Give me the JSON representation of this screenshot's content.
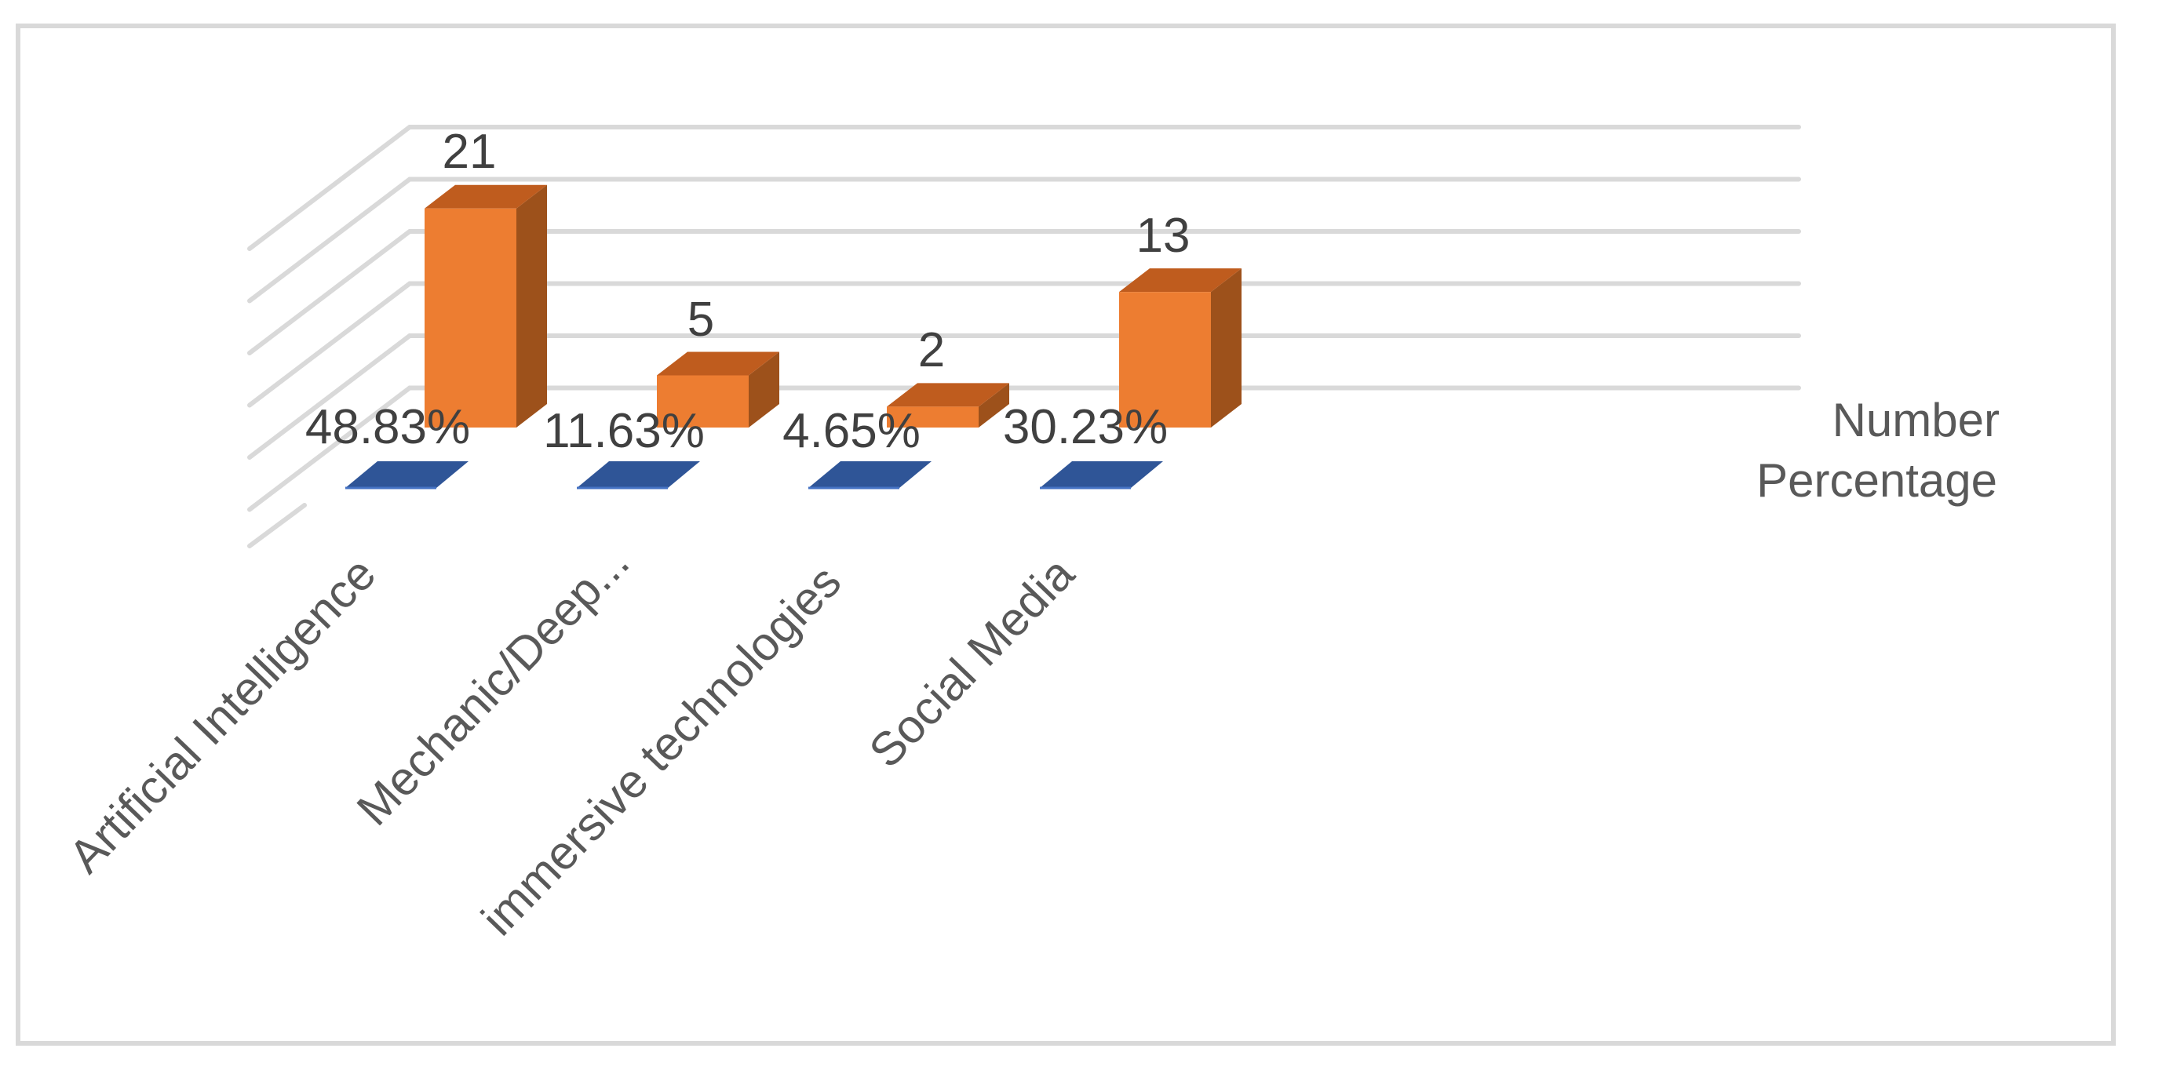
{
  "chart_data": {
    "type": "bar",
    "subtype": "3d-clustered-column",
    "title": "",
    "xlabel": "",
    "ylabel": "",
    "categories": [
      "Artificial Intelligence",
      "Mechanic/Deep...",
      "immersive technologies",
      "Social Media"
    ],
    "series": [
      {
        "name": "Number",
        "values": [
          21,
          5,
          2,
          13
        ],
        "labels": [
          "21",
          "5",
          "2",
          "13"
        ],
        "color": "#ed7d31"
      },
      {
        "name": "Percentage",
        "values": [
          0.4883,
          0.1163,
          0.0465,
          0.3023
        ],
        "labels": [
          "48.83%",
          "11.63%",
          "4.65%",
          "30.23%"
        ],
        "color": "#4472c4"
      }
    ],
    "ylim": [
      0,
      25
    ],
    "grid": true,
    "gridlines": 6,
    "legend": {
      "position": "right",
      "entries": [
        "Number",
        "Percentage"
      ]
    }
  },
  "colors": {
    "number_front": "#ed7d31",
    "number_top": "#bf5c1e",
    "number_side": "#9d511b",
    "percentage_flat": "#2f5597",
    "grid": "#d9d9d9",
    "text_dark": "#404040",
    "text_mid": "#595959"
  }
}
